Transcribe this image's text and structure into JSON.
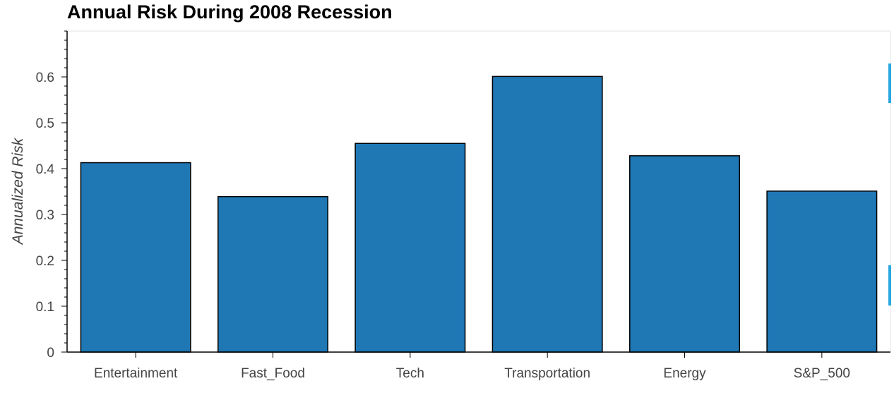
{
  "title": "Annual Risk During 2008 Recession",
  "colors": {
    "bar_fill": "#1f77b4",
    "bar_stroke": "#000000",
    "axis": "#000000",
    "tool_marker": "#29a8e0"
  },
  "chart_data": {
    "type": "bar",
    "title": "Annual Risk During 2008 Recession",
    "xlabel": "",
    "ylabel": "Annualized Risk",
    "categories": [
      "Entertainment",
      "Fast_Food",
      "Tech",
      "Transportation",
      "Energy",
      "S&P_500"
    ],
    "values": [
      0.413,
      0.339,
      0.455,
      0.601,
      0.428,
      0.351
    ],
    "ylim": [
      0,
      0.7
    ],
    "yticks": [
      "0",
      "0.1",
      "0.2",
      "0.3",
      "0.4",
      "0.5",
      "0.6"
    ],
    "grid": false
  }
}
